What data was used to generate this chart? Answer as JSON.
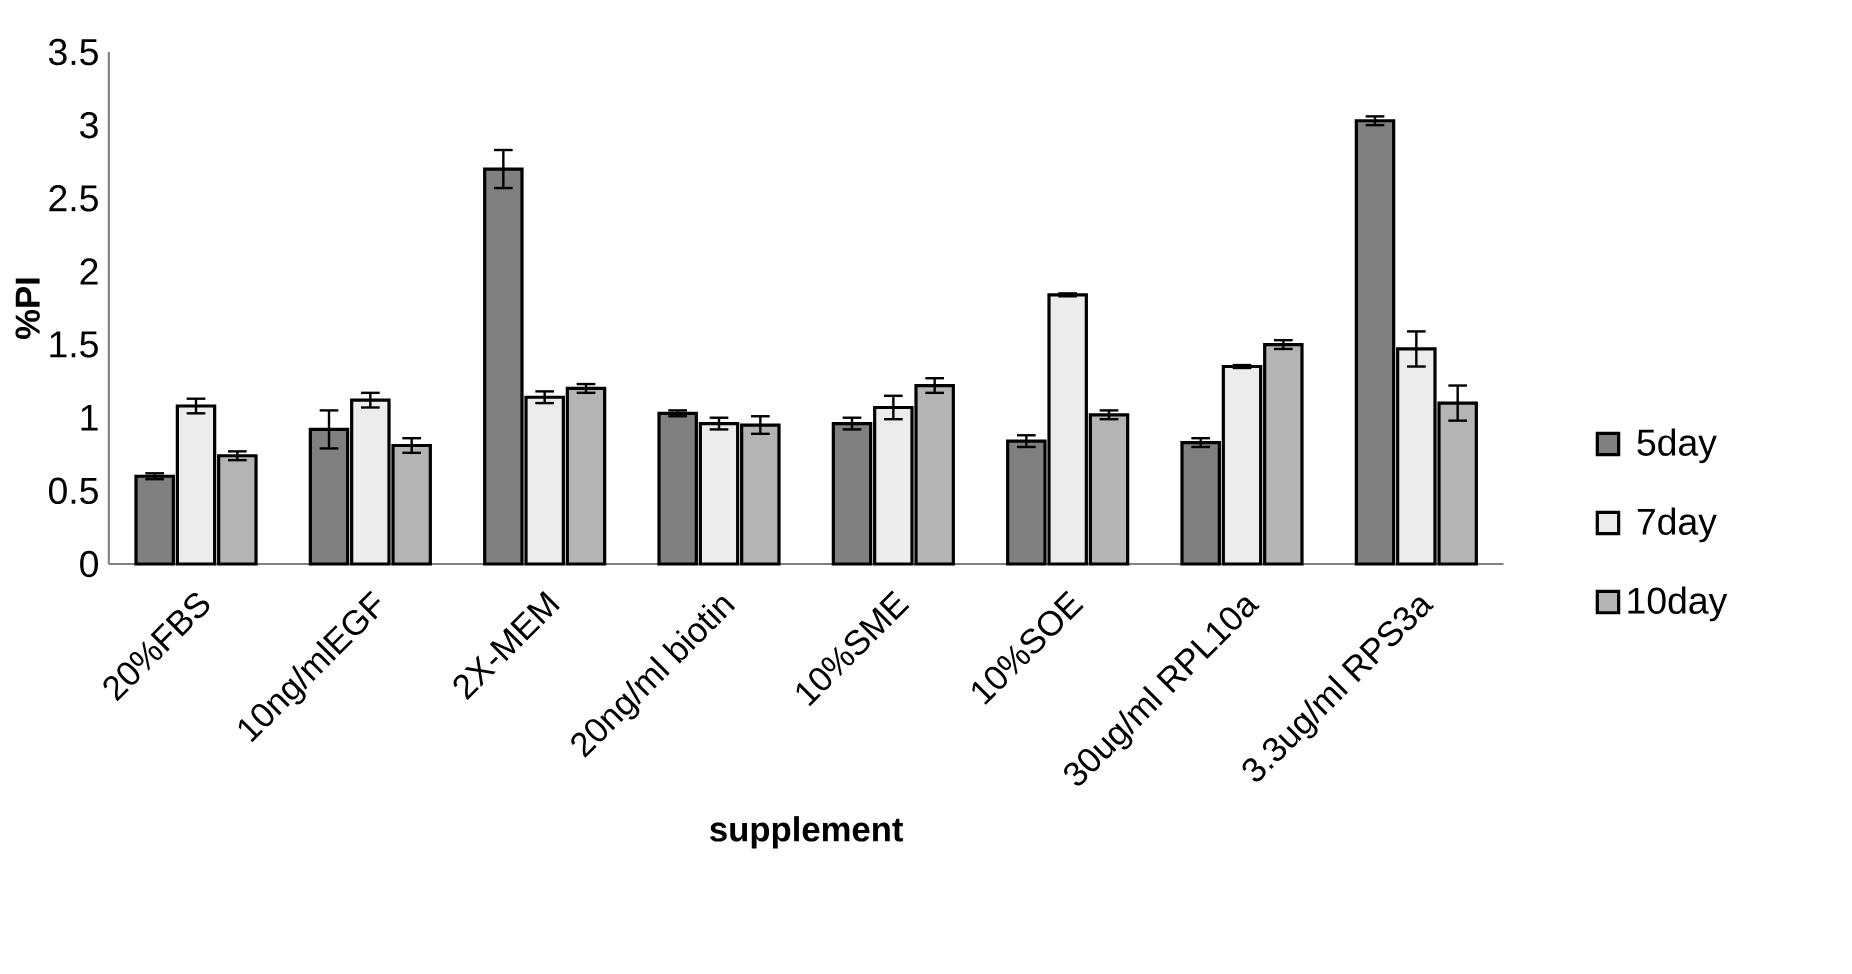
{
  "chart_data": {
    "type": "bar",
    "xlabel": "supplement",
    "ylabel": "%PI",
    "categories": [
      "20%FBS",
      "10ng/mlEGF",
      "2X-MEM",
      "20ng/ml biotin",
      "10%SME",
      "10%SOE",
      "30ug/ml RPL10a",
      "3.3ug/ml RPS3a"
    ],
    "series": [
      {
        "name": "5day",
        "color": "#808080",
        "values": [
          0.6,
          0.92,
          2.7,
          1.03,
          0.96,
          0.84,
          0.83,
          3.03
        ],
        "errors": [
          0.02,
          0.13,
          0.13,
          0.02,
          0.04,
          0.04,
          0.03,
          0.03
        ]
      },
      {
        "name": "7day",
        "color": "#ececec",
        "values": [
          1.08,
          1.12,
          1.14,
          0.96,
          1.07,
          1.84,
          1.35,
          1.47
        ],
        "errors": [
          0.05,
          0.05,
          0.04,
          0.04,
          0.08,
          0.01,
          0.01,
          0.12
        ]
      },
      {
        "name": "10day",
        "color": "#b4b4b4",
        "values": [
          0.74,
          0.81,
          1.2,
          0.95,
          1.22,
          1.02,
          1.5,
          1.1
        ],
        "errors": [
          0.03,
          0.05,
          0.03,
          0.06,
          0.05,
          0.03,
          0.03,
          0.12
        ]
      }
    ],
    "ylim": [
      0,
      3.5
    ],
    "yticks": [
      0,
      0.5,
      1,
      1.5,
      2,
      2.5,
      3,
      3.5
    ],
    "grid": false,
    "legend": "right"
  }
}
